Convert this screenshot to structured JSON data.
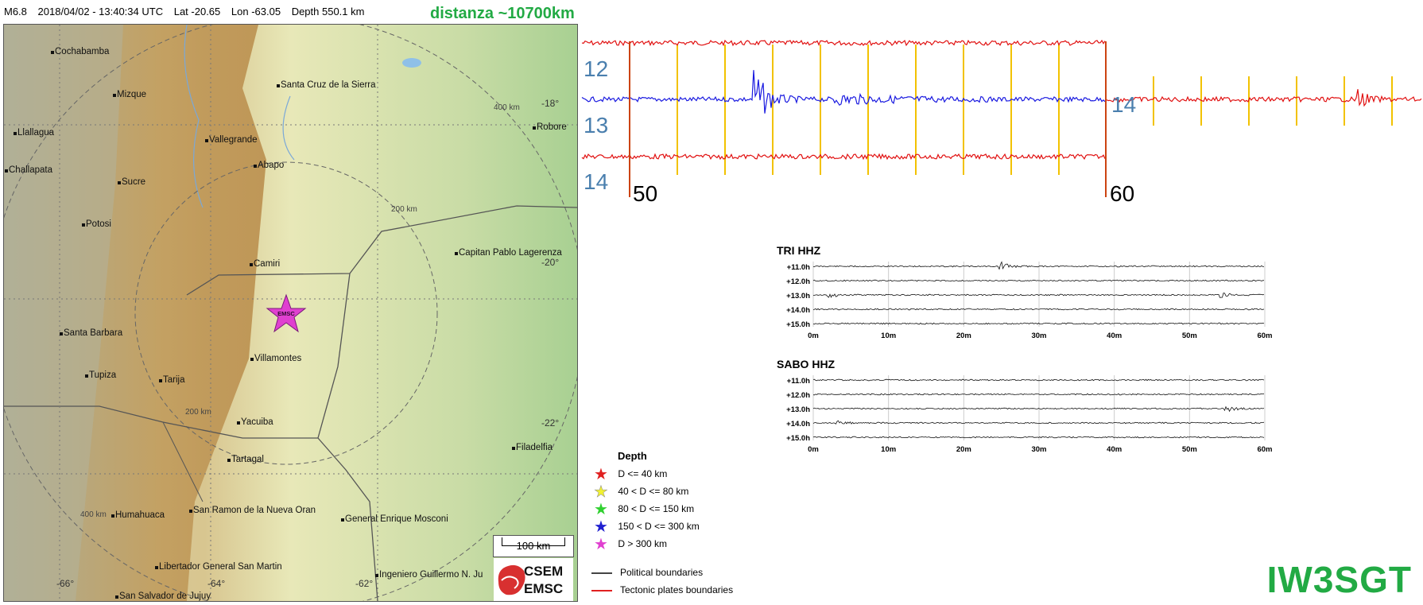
{
  "header": {
    "magnitude": "M6.8",
    "datetime": "2018/04/02 - 13:40:34 UTC",
    "lat": "Lat -20.65",
    "lon": "Lon -63.05",
    "depth": "Depth 550.1 km",
    "distance": "distanza ~10700km"
  },
  "map": {
    "cities": [
      "Cochabamba",
      "Mizque",
      "Santa Cruz de la Sierra",
      "Llallagua",
      "Vallegrande",
      "Challapata",
      "Abapo",
      "Sucre",
      "Potosi",
      "Camiri",
      "Capitan Pablo Lagerenza",
      "Santa Barbara",
      "Villamontes",
      "Tupiza",
      "Tarija",
      "Yacuiba",
      "Tartagal",
      "Filadelfia",
      "Humahuaca",
      "San Ramon de la Nueva Oran",
      "General Enrique Mosconi",
      "Libertador General San Martin",
      "Ingeniero Guillermo N. Ju",
      "San Salvador de Jujuy",
      "Robore"
    ],
    "lat_labels": [
      "-18°",
      "-20°",
      "-22°"
    ],
    "lon_labels": [
      "-66°",
      "-64°",
      "-62°"
    ],
    "radius_labels": [
      "400 km",
      "200 km",
      "200 km",
      "400 km"
    ],
    "epicenter_label": "EMSC",
    "scale_bar": "100 km",
    "logo_top": "CSEM",
    "logo_bottom": "EMSC",
    "colors": {
      "epicenter": "#e040d0",
      "boundary": "#555555"
    }
  },
  "helicorder": {
    "trace_labels": [
      "12",
      "13",
      "14"
    ],
    "continuation_label": "14",
    "minute_labels": [
      "50",
      "60"
    ],
    "colors": {
      "red": "#e11111",
      "blue": "#1a1ae0",
      "marker": "#f2c200",
      "divider": "#cc4411"
    }
  },
  "seismograms": [
    {
      "title": "TRI HHZ",
      "rows": [
        "+11.0h",
        "+12.0h",
        "+13.0h",
        "+14.0h",
        "+15.0h"
      ],
      "ticks": [
        "0m",
        "10m",
        "20m",
        "30m",
        "40m",
        "50m",
        "60m"
      ]
    },
    {
      "title": "SABO HHZ",
      "rows": [
        "+11.0h",
        "+12.0h",
        "+13.0h",
        "+14.0h",
        "+15.0h"
      ],
      "ticks": [
        "0m",
        "10m",
        "20m",
        "30m",
        "40m",
        "50m",
        "60m"
      ]
    }
  ],
  "legend": {
    "title": "Depth",
    "items": [
      {
        "label": "D <= 40 km",
        "color": "#e02020"
      },
      {
        "label": "40 < D <= 80 km",
        "color": "#f2f230"
      },
      {
        "label": "80 < D <= 150 km",
        "color": "#30d030"
      },
      {
        "label": "150 < D <= 300 km",
        "color": "#2020d0"
      },
      {
        "label": "D > 300 km",
        "color": "#e040d0"
      }
    ],
    "lines": [
      {
        "label": "Political boundaries",
        "color": "#444444"
      },
      {
        "label": "Tectonic plates boundaries",
        "color": "#e02020"
      }
    ]
  },
  "brand": "IW3SGT"
}
